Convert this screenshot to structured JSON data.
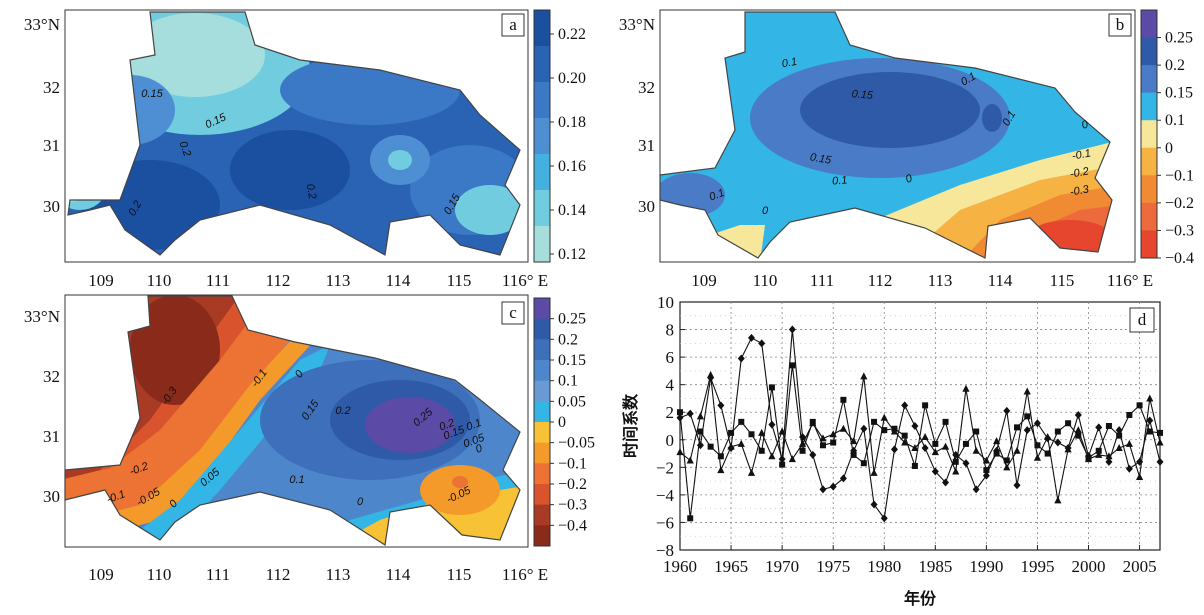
{
  "chart_data": [
    {
      "panel": "a",
      "type": "heatmap",
      "lat_ticks": [
        "33°N",
        "32",
        "31",
        "30"
      ],
      "lon_ticks": [
        "109",
        "110",
        "111",
        "112",
        "113",
        "114",
        "115",
        "116° E"
      ],
      "colorbar": {
        "ticks": [
          "0.22",
          "0.20",
          "0.18",
          "0.16",
          "0.14",
          "0.12"
        ],
        "colors": [
          "#1b4fa0",
          "#2a62b4",
          "#3b78c6",
          "#4e8fd3",
          "#43b0e0",
          "#72cce0",
          "#a6dede"
        ]
      },
      "contour_labels": [
        {
          "label": "0.15",
          "angle": 0
        },
        {
          "label": "0.15",
          "angle": -25
        },
        {
          "label": "0.2",
          "angle": 70
        },
        {
          "label": "0.2",
          "angle": -60
        },
        {
          "label": "0.2",
          "angle": 80
        },
        {
          "label": "0.15",
          "angle": -60
        }
      ]
    },
    {
      "panel": "b",
      "type": "heatmap",
      "lat_ticks": [
        "33°N",
        "32",
        "31",
        "30"
      ],
      "lon_ticks": [
        "109",
        "110",
        "111",
        "112",
        "113",
        "114",
        "115",
        "116° E"
      ],
      "colorbar": {
        "ticks": [
          "0.25",
          "0.2",
          "0.15",
          "0.1",
          "0",
          "−0.1",
          "−0.2",
          "−0.3",
          "−0.4"
        ],
        "colors": [
          "#5b4aa6",
          "#2f5aa8",
          "#4a7bc6",
          "#33b6e6",
          "#f7e79a",
          "#f6b243",
          "#f08a33",
          "#ec6a3b",
          "#e6462d"
        ]
      },
      "contour_labels": [
        {
          "label": "0.1",
          "angle": -10
        },
        {
          "label": "0.15",
          "angle": 5
        },
        {
          "label": "0.1",
          "angle": -30
        },
        {
          "label": "0.1",
          "angle": -60
        },
        {
          "label": "0.15",
          "angle": 10
        },
        {
          "label": "0.1",
          "angle": -5
        },
        {
          "label": "0.1",
          "angle": -20
        },
        {
          "label": "0",
          "angle": -20
        },
        {
          "label": "0",
          "angle": 0
        },
        {
          "label": "0",
          "angle": -20
        },
        {
          "label": "-0.1",
          "angle": -10
        },
        {
          "label": "-0.2",
          "angle": -10
        },
        {
          "label": "-0.3",
          "angle": -10
        }
      ]
    },
    {
      "panel": "c",
      "type": "heatmap",
      "lat_ticks": [
        "33°N",
        "32",
        "31",
        "30"
      ],
      "lon_ticks": [
        "109",
        "110",
        "111",
        "112",
        "113",
        "114",
        "115",
        "116° E"
      ],
      "colorbar": {
        "ticks": [
          "0.25",
          "0.2",
          "0.15",
          "0.1",
          "0.05",
          "0",
          "−0.05",
          "−0.1",
          "−0.2",
          "−0.3",
          "−0.4"
        ],
        "colors": [
          "#5b4aa6",
          "#2f5aa8",
          "#3d6fbb",
          "#4e86cc",
          "#6a9ad4",
          "#33b6e6",
          "#f7c235",
          "#f49a2b",
          "#ec7333",
          "#d9542c",
          "#a93a24",
          "#8a2a1a"
        ]
      },
      "contour_labels": [
        {
          "label": "-0.3",
          "angle": -55
        },
        {
          "label": "-0.1",
          "angle": -55
        },
        {
          "label": "0",
          "angle": -55
        },
        {
          "label": "0.15",
          "angle": -55
        },
        {
          "label": "0.2",
          "angle": 0
        },
        {
          "label": "0.25",
          "angle": -40
        },
        {
          "label": "0.2",
          "angle": -20
        },
        {
          "label": "0.15",
          "angle": -20
        },
        {
          "label": "0.1",
          "angle": -20
        },
        {
          "label": "0.05",
          "angle": -20
        },
        {
          "label": "0",
          "angle": -20
        },
        {
          "label": "-0.2",
          "angle": -20
        },
        {
          "label": "-0.1",
          "angle": -20
        },
        {
          "label": "-0.05",
          "angle": -30
        },
        {
          "label": "0",
          "angle": -50
        },
        {
          "label": "0.05",
          "angle": -40
        },
        {
          "label": "0.1",
          "angle": 0
        },
        {
          "label": "0",
          "angle": 0
        },
        {
          "label": "-0.05",
          "angle": -25
        }
      ]
    },
    {
      "panel": "d",
      "type": "line",
      "xlabel": "年份",
      "ylabel": "时间系数",
      "xlim": [
        1960,
        2007
      ],
      "ylim": [
        -8,
        10
      ],
      "x_ticks": [
        "1960",
        "1965",
        "1970",
        "1975",
        "1980",
        "1985",
        "1990",
        "1995",
        "2000",
        "2005"
      ],
      "y_ticks": [
        "10",
        "8",
        "6",
        "4",
        "2",
        "0",
        "−2",
        "−4",
        "−6",
        "−8"
      ],
      "grid": true,
      "x": [
        1960,
        1961,
        1962,
        1963,
        1964,
        1965,
        1966,
        1967,
        1968,
        1969,
        1970,
        1971,
        1972,
        1973,
        1974,
        1975,
        1976,
        1977,
        1978,
        1979,
        1980,
        1981,
        1982,
        1983,
        1984,
        1985,
        1986,
        1987,
        1988,
        1989,
        1990,
        1991,
        1992,
        1993,
        1994,
        1995,
        1996,
        1997,
        1998,
        1999,
        2000,
        2001,
        2002,
        2003,
        2004,
        2005,
        2006,
        2007
      ],
      "series": [
        {
          "marker": "square",
          "values": [
            2.0,
            -5.7,
            0.6,
            -0.5,
            -1.2,
            0.5,
            1.3,
            0.4,
            -0.8,
            3.8,
            -1.8,
            5.4,
            -0.8,
            1.3,
            -0.4,
            -0.2,
            2.9,
            -1.1,
            -1.7,
            1.3,
            0.7,
            0.8,
            0.3,
            -1.9,
            2.5,
            -0.3,
            1.3,
            -1.6,
            -0.3,
            0.6,
            -2.2,
            -1.0,
            -1.5,
            0.9,
            1.7,
            -0.4,
            -1.0,
            0.6,
            1.2,
            0.3,
            -1.3,
            -0.8,
            1.0,
            0.3,
            1.8,
            2.5,
            0.6,
            0.5
          ]
        },
        {
          "marker": "diamond",
          "values": [
            1.6,
            1.9,
            -0.4,
            4.5,
            2.5,
            -0.6,
            5.9,
            7.4,
            7.0,
            1.1,
            -1.4,
            8.0,
            0.2,
            -1.1,
            -3.6,
            -3.4,
            -2.8,
            -0.8,
            0.8,
            -4.7,
            -5.7,
            -0.7,
            2.5,
            1.0,
            -0.6,
            -2.3,
            -3.1,
            -1.1,
            -1.7,
            -3.6,
            -2.6,
            -0.8,
            2.1,
            -3.3,
            0.7,
            1.2,
            0.1,
            -0.2,
            -0.6,
            1.8,
            -1.2,
            0.9,
            -1.6,
            0.7,
            -2.1,
            -1.6,
            1.4,
            -1.6
          ]
        },
        {
          "marker": "triangle",
          "values": [
            -0.9,
            -1.5,
            1.7,
            4.7,
            -2.2,
            -0.5,
            -0.3,
            -2.4,
            0.5,
            -1.2,
            0.6,
            -1.4,
            -0.3,
            1.2,
            0.1,
            0.4,
            0.8,
            -0.1,
            4.6,
            -2.4,
            1.6,
            0.6,
            -0.2,
            -0.6,
            0.2,
            -0.9,
            -0.5,
            -2.3,
            3.7,
            -0.8,
            -1.5,
            -0.1,
            -2.0,
            -0.8,
            3.5,
            -1.3,
            0.2,
            -4.4,
            -0.7,
            0.7,
            -1.4,
            -1.1,
            -1.2,
            -0.6,
            -0.3,
            -2.7,
            3.0,
            -0.2
          ]
        }
      ]
    }
  ]
}
